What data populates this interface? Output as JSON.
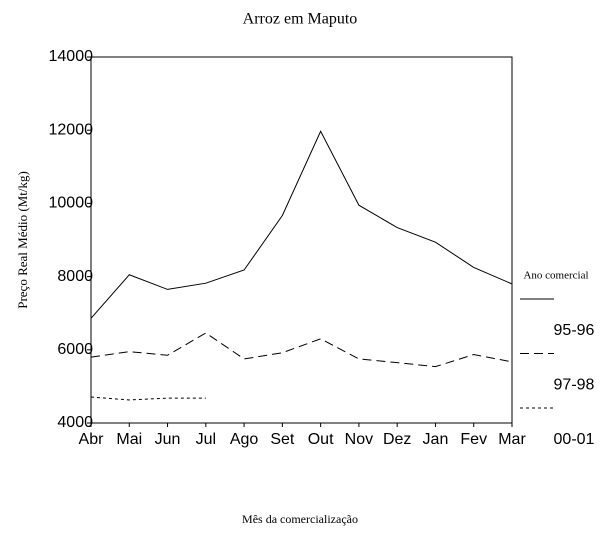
{
  "chart_data": {
    "type": "line",
    "title": "Arroz em Maputo",
    "x_label": "Mês da comercialização",
    "y_label": "Preço Real Médio (Mt/kg)",
    "legend_title": "Ano comercial",
    "legend": "right",
    "categories": [
      "Abr",
      "Mai",
      "Jun",
      "Jul",
      "Ago",
      "Set",
      "Out",
      "Nov",
      "Dez",
      "Jan",
      "Fev",
      "Mar"
    ],
    "ylim": [
      4000,
      14000
    ],
    "yticks": [
      4000,
      6000,
      8000,
      10000,
      12000,
      14000
    ],
    "series": [
      {
        "name": "95-96",
        "color": "#000000",
        "dash": "solid",
        "values": [
          6860,
          8050,
          7650,
          7820,
          8180,
          9670,
          11970,
          9950,
          9340,
          8940,
          8250,
          7800
        ]
      },
      {
        "name": "97-98",
        "color": "#000000",
        "dash": "dashed",
        "values": [
          5800,
          5950,
          5850,
          6460,
          5750,
          5920,
          6300,
          5750,
          5650,
          5540,
          5870,
          5670
        ]
      },
      {
        "name": "00-01",
        "color": "#000000",
        "dash": "dotted",
        "values": [
          4710,
          4630,
          4680,
          4680,
          null,
          null,
          null,
          null,
          null,
          null,
          null,
          null
        ]
      }
    ]
  }
}
